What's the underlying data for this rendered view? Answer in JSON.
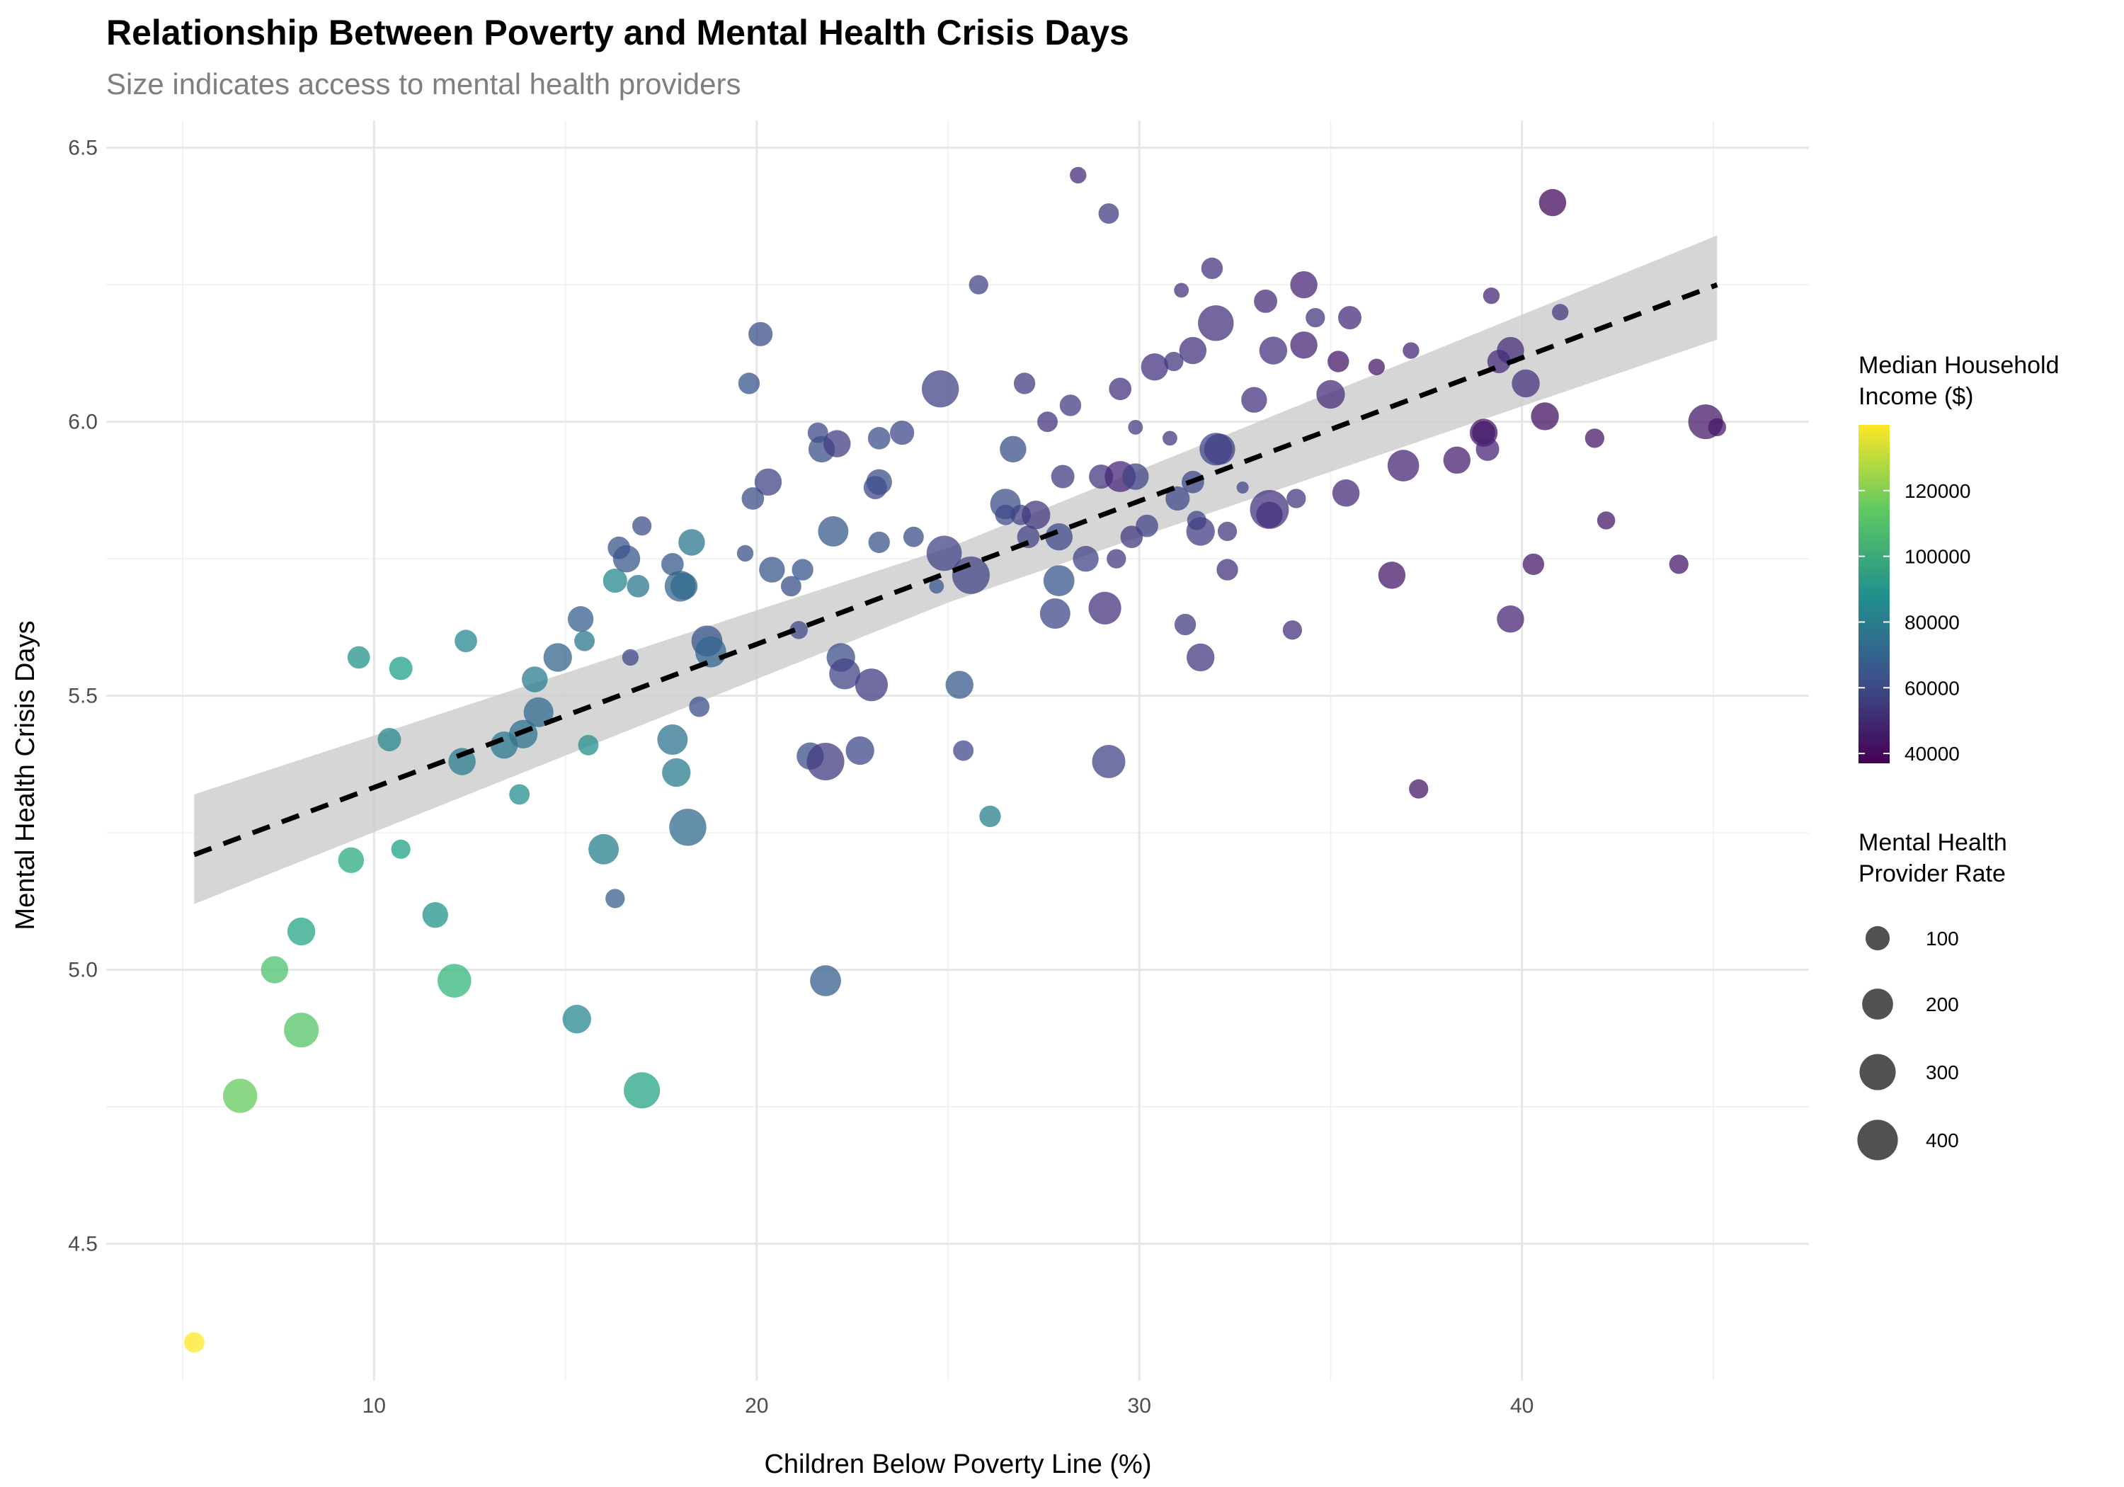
{
  "chart_data": {
    "type": "scatter",
    "title": "Relationship Between Poverty and Mental Health Crisis Days",
    "subtitle": "Size indicates access to mental health providers",
    "xlabel": "Children Below Poverty Line (%)",
    "ylabel": "Mental Health Crisis Days",
    "xlim": [
      3.0,
      47.5
    ],
    "ylim": [
      4.25,
      6.55
    ],
    "x_ticks": [
      10,
      20,
      30,
      40
    ],
    "y_ticks": [
      4.5,
      5.0,
      5.5,
      6.0,
      6.5
    ],
    "grid": true,
    "legend_position": "right",
    "trend_line": {
      "style": "dashed",
      "color": "#000000",
      "x": [
        5.3,
        45.1
      ],
      "y": [
        5.21,
        6.25
      ],
      "confidence_band": {
        "color": "#cccccc",
        "x": [
          5.3,
          25.0,
          45.1
        ],
        "lower": [
          5.12,
          5.67,
          6.15
        ],
        "upper": [
          5.32,
          5.77,
          6.34
        ]
      }
    },
    "color_legend": {
      "title_lines": [
        "Median Household",
        "Income ($)"
      ],
      "range": [
        37000,
        140000
      ],
      "ticks": [
        40000,
        60000,
        80000,
        100000,
        120000
      ],
      "tick_labels": [
        "40000",
        "60000",
        "80000",
        "100000",
        "120000"
      ],
      "palette": "viridis"
    },
    "size_legend": {
      "title_lines": [
        "Mental Health",
        "Provider Rate"
      ],
      "range": [
        5,
        450
      ],
      "values": [
        100,
        200,
        300,
        400
      ],
      "labels": [
        "100",
        "200",
        "300",
        "400"
      ]
    },
    "points": [
      {
        "x": 5.3,
        "y": 4.32,
        "income": 140000,
        "provider": 60
      },
      {
        "x": 6.5,
        "y": 4.77,
        "income": 115000,
        "provider": 260
      },
      {
        "x": 7.4,
        "y": 5.0,
        "income": 110000,
        "provider": 140
      },
      {
        "x": 8.1,
        "y": 4.89,
        "income": 112000,
        "provider": 270
      },
      {
        "x": 8.1,
        "y": 5.07,
        "income": 98000,
        "provider": 150
      },
      {
        "x": 9.4,
        "y": 5.2,
        "income": 100000,
        "provider": 120
      },
      {
        "x": 9.6,
        "y": 5.57,
        "income": 90000,
        "provider": 80
      },
      {
        "x": 10.4,
        "y": 5.42,
        "income": 85000,
        "provider": 90
      },
      {
        "x": 10.7,
        "y": 5.22,
        "income": 95000,
        "provider": 50
      },
      {
        "x": 10.7,
        "y": 5.55,
        "income": 95000,
        "provider": 90
      },
      {
        "x": 11.6,
        "y": 5.1,
        "income": 90000,
        "provider": 120
      },
      {
        "x": 12.1,
        "y": 4.98,
        "income": 105000,
        "provider": 250
      },
      {
        "x": 12.3,
        "y": 5.38,
        "income": 80000,
        "provider": 140
      },
      {
        "x": 12.4,
        "y": 5.6,
        "income": 85000,
        "provider": 80
      },
      {
        "x": 13.4,
        "y": 5.41,
        "income": 78000,
        "provider": 140
      },
      {
        "x": 13.8,
        "y": 5.32,
        "income": 88000,
        "provider": 60
      },
      {
        "x": 13.9,
        "y": 5.43,
        "income": 75000,
        "provider": 160
      },
      {
        "x": 14.2,
        "y": 5.53,
        "income": 80000,
        "provider": 120
      },
      {
        "x": 14.3,
        "y": 5.47,
        "income": 72000,
        "provider": 180
      },
      {
        "x": 14.8,
        "y": 5.57,
        "income": 70000,
        "provider": 160
      },
      {
        "x": 15.3,
        "y": 4.91,
        "income": 85000,
        "provider": 160
      },
      {
        "x": 15.4,
        "y": 5.64,
        "income": 68000,
        "provider": 120
      },
      {
        "x": 15.5,
        "y": 5.6,
        "income": 78000,
        "provider": 60
      },
      {
        "x": 15.6,
        "y": 5.41,
        "income": 88000,
        "provider": 60
      },
      {
        "x": 16.0,
        "y": 5.22,
        "income": 82000,
        "provider": 190
      },
      {
        "x": 16.3,
        "y": 5.13,
        "income": 68000,
        "provider": 50
      },
      {
        "x": 16.3,
        "y": 5.71,
        "income": 85000,
        "provider": 100
      },
      {
        "x": 16.4,
        "y": 5.77,
        "income": 64000,
        "provider": 80
      },
      {
        "x": 16.6,
        "y": 5.75,
        "income": 65000,
        "provider": 140
      },
      {
        "x": 16.7,
        "y": 5.57,
        "income": 60000,
        "provider": 30
      },
      {
        "x": 16.9,
        "y": 5.7,
        "income": 78000,
        "provider": 80
      },
      {
        "x": 17.0,
        "y": 4.78,
        "income": 98000,
        "provider": 300
      },
      {
        "x": 17.0,
        "y": 5.81,
        "income": 62000,
        "provider": 50
      },
      {
        "x": 17.8,
        "y": 5.42,
        "income": 76000,
        "provider": 190
      },
      {
        "x": 17.8,
        "y": 5.74,
        "income": 65000,
        "provider": 80
      },
      {
        "x": 17.9,
        "y": 5.36,
        "income": 80000,
        "provider": 160
      },
      {
        "x": 18.0,
        "y": 5.7,
        "income": 70000,
        "provider": 200
      },
      {
        "x": 18.1,
        "y": 5.7,
        "income": 72000,
        "provider": 140
      },
      {
        "x": 18.2,
        "y": 5.26,
        "income": 72000,
        "provider": 320
      },
      {
        "x": 18.3,
        "y": 5.78,
        "income": 78000,
        "provider": 130
      },
      {
        "x": 18.5,
        "y": 5.48,
        "income": 62000,
        "provider": 60
      },
      {
        "x": 18.7,
        "y": 5.6,
        "income": 64000,
        "provider": 200
      },
      {
        "x": 18.8,
        "y": 5.58,
        "income": 70000,
        "provider": 200
      },
      {
        "x": 19.7,
        "y": 5.76,
        "income": 62000,
        "provider": 30
      },
      {
        "x": 19.8,
        "y": 6.07,
        "income": 64000,
        "provider": 70
      },
      {
        "x": 19.9,
        "y": 5.86,
        "income": 62000,
        "provider": 80
      },
      {
        "x": 20.1,
        "y": 6.16,
        "income": 62000,
        "provider": 100
      },
      {
        "x": 20.3,
        "y": 5.89,
        "income": 58000,
        "provider": 140
      },
      {
        "x": 20.4,
        "y": 5.73,
        "income": 65000,
        "provider": 120
      },
      {
        "x": 20.9,
        "y": 5.7,
        "income": 62000,
        "provider": 60
      },
      {
        "x": 21.1,
        "y": 5.62,
        "income": 60000,
        "provider": 40
      },
      {
        "x": 21.2,
        "y": 5.73,
        "income": 64000,
        "provider": 70
      },
      {
        "x": 21.4,
        "y": 5.39,
        "income": 62000,
        "provider": 140
      },
      {
        "x": 21.6,
        "y": 5.98,
        "income": 60000,
        "provider": 60
      },
      {
        "x": 21.7,
        "y": 5.95,
        "income": 62000,
        "provider": 130
      },
      {
        "x": 21.8,
        "y": 5.38,
        "income": 55000,
        "provider": 330
      },
      {
        "x": 21.8,
        "y": 4.98,
        "income": 68000,
        "provider": 200
      },
      {
        "x": 22.0,
        "y": 5.8,
        "income": 66000,
        "provider": 190
      },
      {
        "x": 22.1,
        "y": 5.96,
        "income": 56000,
        "provider": 140
      },
      {
        "x": 22.2,
        "y": 5.57,
        "income": 62000,
        "provider": 160
      },
      {
        "x": 22.3,
        "y": 5.54,
        "income": 58000,
        "provider": 200
      },
      {
        "x": 22.7,
        "y": 5.4,
        "income": 60000,
        "provider": 160
      },
      {
        "x": 23.0,
        "y": 5.52,
        "income": 55000,
        "provider": 230
      },
      {
        "x": 23.1,
        "y": 5.88,
        "income": 60000,
        "provider": 90
      },
      {
        "x": 23.2,
        "y": 5.89,
        "income": 62000,
        "provider": 120
      },
      {
        "x": 23.2,
        "y": 5.97,
        "income": 62000,
        "provider": 80
      },
      {
        "x": 23.2,
        "y": 5.78,
        "income": 64000,
        "provider": 70
      },
      {
        "x": 23.8,
        "y": 5.98,
        "income": 60000,
        "provider": 100
      },
      {
        "x": 24.1,
        "y": 5.79,
        "income": 62000,
        "provider": 60
      },
      {
        "x": 24.7,
        "y": 5.7,
        "income": 64000,
        "provider": 20
      },
      {
        "x": 24.8,
        "y": 6.06,
        "income": 58000,
        "provider": 320
      },
      {
        "x": 24.9,
        "y": 5.76,
        "income": 58000,
        "provider": 280
      },
      {
        "x": 25.3,
        "y": 5.52,
        "income": 66000,
        "provider": 150
      },
      {
        "x": 25.4,
        "y": 5.4,
        "income": 60000,
        "provider": 60
      },
      {
        "x": 25.6,
        "y": 5.72,
        "income": 58000,
        "provider": 330
      },
      {
        "x": 25.8,
        "y": 6.25,
        "income": 58000,
        "provider": 50
      },
      {
        "x": 26.1,
        "y": 5.28,
        "income": 82000,
        "provider": 70
      },
      {
        "x": 26.5,
        "y": 5.85,
        "income": 62000,
        "provider": 190
      },
      {
        "x": 26.5,
        "y": 5.83,
        "income": 60000,
        "provider": 60
      },
      {
        "x": 26.7,
        "y": 5.95,
        "income": 62000,
        "provider": 130
      },
      {
        "x": 26.9,
        "y": 5.83,
        "income": 58000,
        "provider": 60
      },
      {
        "x": 27.0,
        "y": 6.07,
        "income": 56000,
        "provider": 70
      },
      {
        "x": 27.1,
        "y": 5.79,
        "income": 58000,
        "provider": 80
      },
      {
        "x": 27.3,
        "y": 5.83,
        "income": 54000,
        "provider": 160
      },
      {
        "x": 27.6,
        "y": 6.0,
        "income": 52000,
        "provider": 60
      },
      {
        "x": 27.8,
        "y": 5.65,
        "income": 60000,
        "provider": 190
      },
      {
        "x": 27.9,
        "y": 5.71,
        "income": 64000,
        "provider": 200
      },
      {
        "x": 27.9,
        "y": 5.79,
        "income": 60000,
        "provider": 140
      },
      {
        "x": 28.0,
        "y": 5.9,
        "income": 56000,
        "provider": 90
      },
      {
        "x": 28.2,
        "y": 6.03,
        "income": 56000,
        "provider": 70
      },
      {
        "x": 28.4,
        "y": 6.45,
        "income": 50000,
        "provider": 30
      },
      {
        "x": 28.6,
        "y": 5.75,
        "income": 58000,
        "provider": 120
      },
      {
        "x": 29.0,
        "y": 5.9,
        "income": 54000,
        "provider": 100
      },
      {
        "x": 29.1,
        "y": 5.66,
        "income": 52000,
        "provider": 230
      },
      {
        "x": 29.2,
        "y": 6.38,
        "income": 56000,
        "provider": 60
      },
      {
        "x": 29.2,
        "y": 5.38,
        "income": 58000,
        "provider": 240
      },
      {
        "x": 29.4,
        "y": 5.75,
        "income": 54000,
        "provider": 50
      },
      {
        "x": 29.5,
        "y": 5.9,
        "income": 48000,
        "provider": 200
      },
      {
        "x": 29.5,
        "y": 6.06,
        "income": 52000,
        "provider": 80
      },
      {
        "x": 29.8,
        "y": 5.79,
        "income": 54000,
        "provider": 80
      },
      {
        "x": 29.9,
        "y": 5.99,
        "income": 56000,
        "provider": 20
      },
      {
        "x": 29.9,
        "y": 5.9,
        "income": 58000,
        "provider": 130
      },
      {
        "x": 30.2,
        "y": 5.81,
        "income": 58000,
        "provider": 80
      },
      {
        "x": 30.4,
        "y": 6.1,
        "income": 52000,
        "provider": 140
      },
      {
        "x": 30.8,
        "y": 5.97,
        "income": 54000,
        "provider": 20
      },
      {
        "x": 30.9,
        "y": 6.11,
        "income": 54000,
        "provider": 50
      },
      {
        "x": 31.0,
        "y": 5.86,
        "income": 60000,
        "provider": 100
      },
      {
        "x": 31.1,
        "y": 6.24,
        "income": 52000,
        "provider": 20
      },
      {
        "x": 31.2,
        "y": 5.63,
        "income": 56000,
        "provider": 70
      },
      {
        "x": 31.4,
        "y": 5.89,
        "income": 60000,
        "provider": 80
      },
      {
        "x": 31.4,
        "y": 6.13,
        "income": 52000,
        "provider": 140
      },
      {
        "x": 31.5,
        "y": 5.82,
        "income": 58000,
        "provider": 50
      },
      {
        "x": 31.6,
        "y": 5.8,
        "income": 56000,
        "provider": 160
      },
      {
        "x": 31.6,
        "y": 5.57,
        "income": 54000,
        "provider": 150
      },
      {
        "x": 31.9,
        "y": 6.28,
        "income": 52000,
        "provider": 70
      },
      {
        "x": 32.0,
        "y": 5.95,
        "income": 60000,
        "provider": 230
      },
      {
        "x": 32.0,
        "y": 6.18,
        "income": 52000,
        "provider": 290
      },
      {
        "x": 32.1,
        "y": 5.95,
        "income": 56000,
        "provider": 200
      },
      {
        "x": 32.3,
        "y": 5.73,
        "income": 52000,
        "provider": 70
      },
      {
        "x": 32.3,
        "y": 5.8,
        "income": 54000,
        "provider": 50
      },
      {
        "x": 32.7,
        "y": 5.88,
        "income": 60000,
        "provider": 10
      },
      {
        "x": 33.0,
        "y": 6.04,
        "income": 52000,
        "provider": 120
      },
      {
        "x": 33.3,
        "y": 6.22,
        "income": 50000,
        "provider": 90
      },
      {
        "x": 33.4,
        "y": 5.84,
        "income": 52000,
        "provider": 360
      },
      {
        "x": 33.4,
        "y": 5.83,
        "income": 52000,
        "provider": 130
      },
      {
        "x": 33.5,
        "y": 6.13,
        "income": 52000,
        "provider": 150
      },
      {
        "x": 34.0,
        "y": 5.62,
        "income": 52000,
        "provider": 50
      },
      {
        "x": 34.1,
        "y": 5.86,
        "income": 54000,
        "provider": 50
      },
      {
        "x": 34.3,
        "y": 6.25,
        "income": 48000,
        "provider": 140
      },
      {
        "x": 34.3,
        "y": 6.14,
        "income": 48000,
        "provider": 140
      },
      {
        "x": 34.6,
        "y": 6.19,
        "income": 54000,
        "provider": 50
      },
      {
        "x": 35.0,
        "y": 6.05,
        "income": 50000,
        "provider": 160
      },
      {
        "x": 35.2,
        "y": 6.11,
        "income": 44000,
        "provider": 70
      },
      {
        "x": 35.4,
        "y": 5.87,
        "income": 50000,
        "provider": 140
      },
      {
        "x": 35.5,
        "y": 6.19,
        "income": 50000,
        "provider": 90
      },
      {
        "x": 36.2,
        "y": 6.1,
        "income": 44000,
        "provider": 30
      },
      {
        "x": 36.6,
        "y": 5.72,
        "income": 44000,
        "provider": 140
      },
      {
        "x": 36.9,
        "y": 5.92,
        "income": 48000,
        "provider": 210
      },
      {
        "x": 37.1,
        "y": 6.13,
        "income": 48000,
        "provider": 30
      },
      {
        "x": 37.3,
        "y": 5.33,
        "income": 44000,
        "provider": 50
      },
      {
        "x": 38.3,
        "y": 5.93,
        "income": 46000,
        "provider": 140
      },
      {
        "x": 39.0,
        "y": 5.98,
        "income": 44000,
        "provider": 150
      },
      {
        "x": 39.0,
        "y": 5.98,
        "income": 44000,
        "provider": 90
      },
      {
        "x": 39.1,
        "y": 5.95,
        "income": 48000,
        "provider": 90
      },
      {
        "x": 39.2,
        "y": 6.23,
        "income": 48000,
        "provider": 30
      },
      {
        "x": 39.4,
        "y": 6.11,
        "income": 50000,
        "provider": 90
      },
      {
        "x": 39.7,
        "y": 6.13,
        "income": 50000,
        "provider": 140
      },
      {
        "x": 39.7,
        "y": 5.64,
        "income": 48000,
        "provider": 140
      },
      {
        "x": 40.1,
        "y": 6.07,
        "income": 52000,
        "provider": 150
      },
      {
        "x": 40.3,
        "y": 5.74,
        "income": 44000,
        "provider": 70
      },
      {
        "x": 40.6,
        "y": 6.01,
        "income": 42000,
        "provider": 150
      },
      {
        "x": 40.8,
        "y": 6.4,
        "income": 40000,
        "provider": 140
      },
      {
        "x": 41.0,
        "y": 6.2,
        "income": 54000,
        "provider": 30
      },
      {
        "x": 41.9,
        "y": 5.97,
        "income": 44000,
        "provider": 50
      },
      {
        "x": 42.2,
        "y": 5.82,
        "income": 44000,
        "provider": 40
      },
      {
        "x": 44.1,
        "y": 5.74,
        "income": 44000,
        "provider": 50
      },
      {
        "x": 44.8,
        "y": 6.0,
        "income": 44000,
        "provider": 270
      },
      {
        "x": 45.1,
        "y": 5.99,
        "income": 44000,
        "provider": 40
      }
    ]
  }
}
